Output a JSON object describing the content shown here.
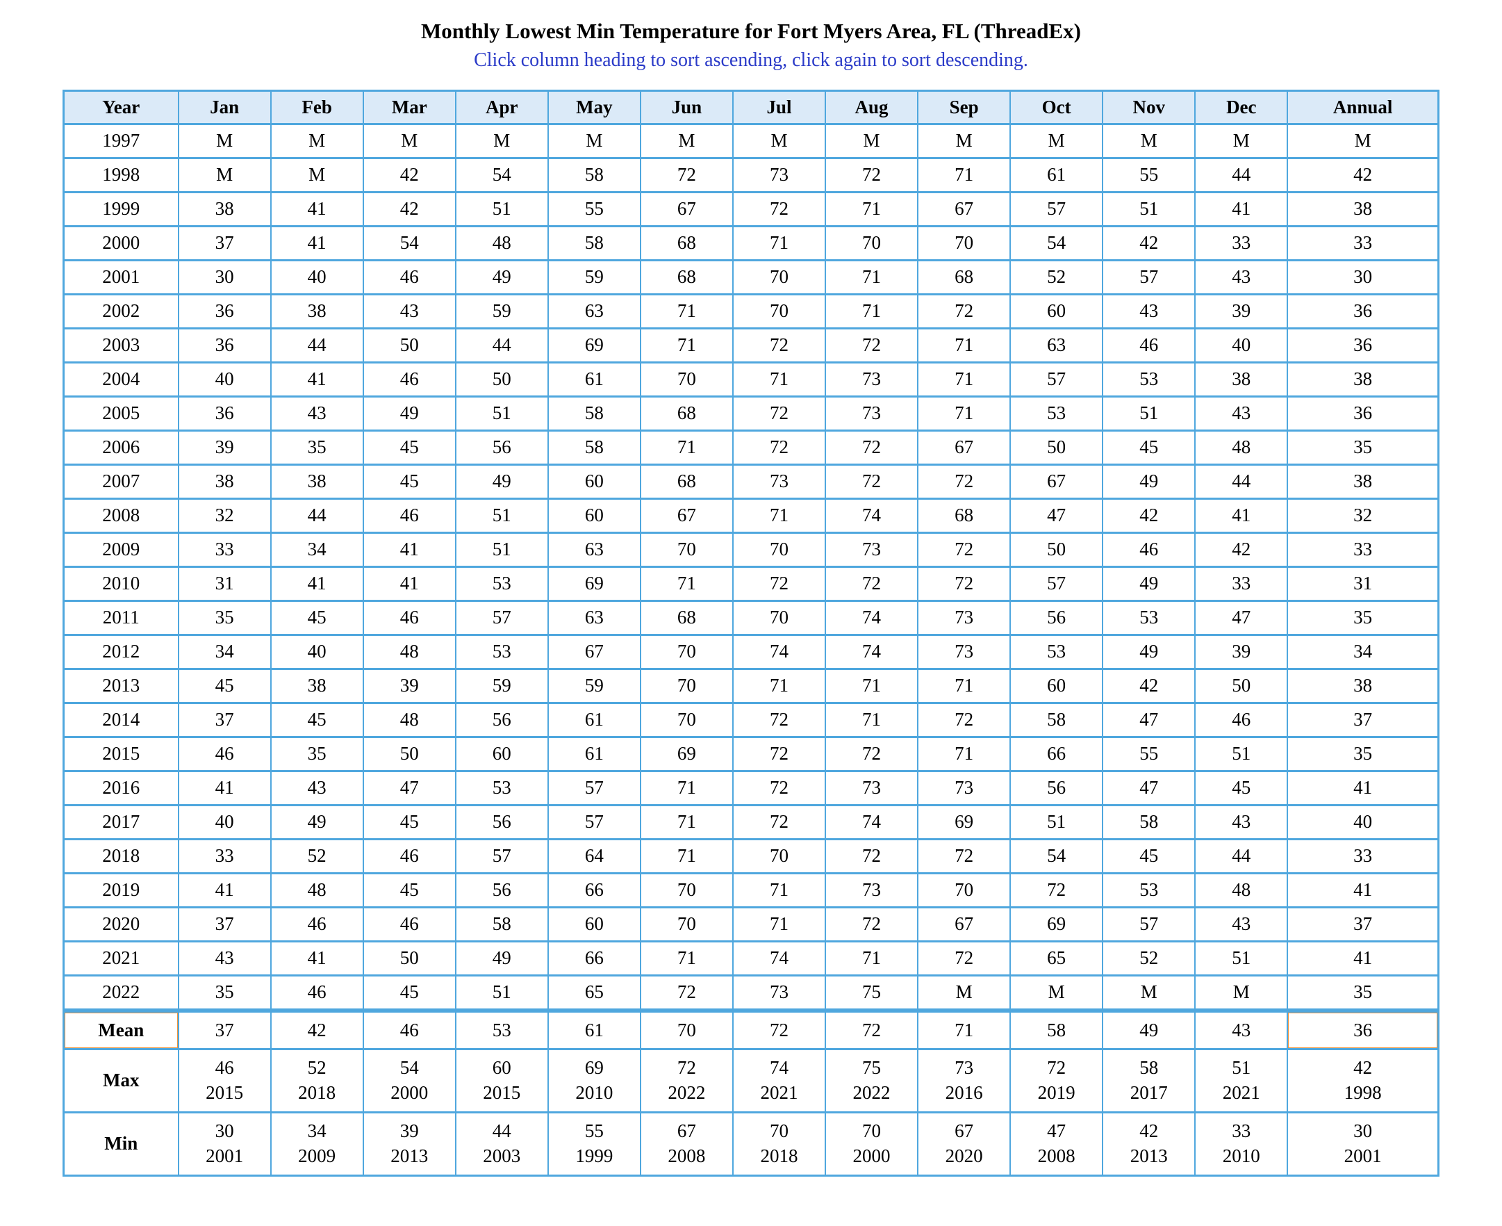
{
  "title": "Monthly Lowest Min Temperature for Fort Myers Area, FL (ThreadEx)",
  "subtitle": "Click column heading to sort ascending, click again to sort descending.",
  "colors": {
    "table_border": "#4FA7DE",
    "header_background": "#DBEAF8",
    "subtitle_blue": "#2B3BC8",
    "highlight_orange": "#F0943C"
  },
  "missing_marker": "M",
  "table": {
    "columns": [
      "Year",
      "Jan",
      "Feb",
      "Mar",
      "Apr",
      "May",
      "Jun",
      "Jul",
      "Aug",
      "Sep",
      "Oct",
      "Nov",
      "Dec",
      "Annual"
    ],
    "rows": [
      {
        "year": "1997",
        "values": [
          "M",
          "M",
          "M",
          "M",
          "M",
          "M",
          "M",
          "M",
          "M",
          "M",
          "M",
          "M"
        ],
        "annual": "M"
      },
      {
        "year": "1998",
        "values": [
          "M",
          "M",
          "42",
          "54",
          "58",
          "72",
          "73",
          "72",
          "71",
          "61",
          "55",
          "44"
        ],
        "annual": "42"
      },
      {
        "year": "1999",
        "values": [
          "38",
          "41",
          "42",
          "51",
          "55",
          "67",
          "72",
          "71",
          "67",
          "57",
          "51",
          "41"
        ],
        "annual": "38"
      },
      {
        "year": "2000",
        "values": [
          "37",
          "41",
          "54",
          "48",
          "58",
          "68",
          "71",
          "70",
          "70",
          "54",
          "42",
          "33"
        ],
        "annual": "33"
      },
      {
        "year": "2001",
        "values": [
          "30",
          "40",
          "46",
          "49",
          "59",
          "68",
          "70",
          "71",
          "68",
          "52",
          "57",
          "43"
        ],
        "annual": "30"
      },
      {
        "year": "2002",
        "values": [
          "36",
          "38",
          "43",
          "59",
          "63",
          "71",
          "70",
          "71",
          "72",
          "60",
          "43",
          "39"
        ],
        "annual": "36"
      },
      {
        "year": "2003",
        "values": [
          "36",
          "44",
          "50",
          "44",
          "69",
          "71",
          "72",
          "72",
          "71",
          "63",
          "46",
          "40"
        ],
        "annual": "36"
      },
      {
        "year": "2004",
        "values": [
          "40",
          "41",
          "46",
          "50",
          "61",
          "70",
          "71",
          "73",
          "71",
          "57",
          "53",
          "38"
        ],
        "annual": "38"
      },
      {
        "year": "2005",
        "values": [
          "36",
          "43",
          "49",
          "51",
          "58",
          "68",
          "72",
          "73",
          "71",
          "53",
          "51",
          "43"
        ],
        "annual": "36"
      },
      {
        "year": "2006",
        "values": [
          "39",
          "35",
          "45",
          "56",
          "58",
          "71",
          "72",
          "72",
          "67",
          "50",
          "45",
          "48"
        ],
        "annual": "35"
      },
      {
        "year": "2007",
        "values": [
          "38",
          "38",
          "45",
          "49",
          "60",
          "68",
          "73",
          "72",
          "72",
          "67",
          "49",
          "44"
        ],
        "annual": "38"
      },
      {
        "year": "2008",
        "values": [
          "32",
          "44",
          "46",
          "51",
          "60",
          "67",
          "71",
          "74",
          "68",
          "47",
          "42",
          "41"
        ],
        "annual": "32"
      },
      {
        "year": "2009",
        "values": [
          "33",
          "34",
          "41",
          "51",
          "63",
          "70",
          "70",
          "73",
          "72",
          "50",
          "46",
          "42"
        ],
        "annual": "33"
      },
      {
        "year": "2010",
        "values": [
          "31",
          "41",
          "41",
          "53",
          "69",
          "71",
          "72",
          "72",
          "72",
          "57",
          "49",
          "33"
        ],
        "annual": "31"
      },
      {
        "year": "2011",
        "values": [
          "35",
          "45",
          "46",
          "57",
          "63",
          "68",
          "70",
          "74",
          "73",
          "56",
          "53",
          "47"
        ],
        "annual": "35"
      },
      {
        "year": "2012",
        "values": [
          "34",
          "40",
          "48",
          "53",
          "67",
          "70",
          "74",
          "74",
          "73",
          "53",
          "49",
          "39"
        ],
        "annual": "34"
      },
      {
        "year": "2013",
        "values": [
          "45",
          "38",
          "39",
          "59",
          "59",
          "70",
          "71",
          "71",
          "71",
          "60",
          "42",
          "50"
        ],
        "annual": "38"
      },
      {
        "year": "2014",
        "values": [
          "37",
          "45",
          "48",
          "56",
          "61",
          "70",
          "72",
          "71",
          "72",
          "58",
          "47",
          "46"
        ],
        "annual": "37"
      },
      {
        "year": "2015",
        "values": [
          "46",
          "35",
          "50",
          "60",
          "61",
          "69",
          "72",
          "72",
          "71",
          "66",
          "55",
          "51"
        ],
        "annual": "35"
      },
      {
        "year": "2016",
        "values": [
          "41",
          "43",
          "47",
          "53",
          "57",
          "71",
          "72",
          "73",
          "73",
          "56",
          "47",
          "45"
        ],
        "annual": "41"
      },
      {
        "year": "2017",
        "values": [
          "40",
          "49",
          "45",
          "56",
          "57",
          "71",
          "72",
          "74",
          "69",
          "51",
          "58",
          "43"
        ],
        "annual": "40"
      },
      {
        "year": "2018",
        "values": [
          "33",
          "52",
          "46",
          "57",
          "64",
          "71",
          "70",
          "72",
          "72",
          "54",
          "45",
          "44"
        ],
        "annual": "33"
      },
      {
        "year": "2019",
        "values": [
          "41",
          "48",
          "45",
          "56",
          "66",
          "70",
          "71",
          "73",
          "70",
          "72",
          "53",
          "48"
        ],
        "annual": "41"
      },
      {
        "year": "2020",
        "values": [
          "37",
          "46",
          "46",
          "58",
          "60",
          "70",
          "71",
          "72",
          "67",
          "69",
          "57",
          "43"
        ],
        "annual": "37"
      },
      {
        "year": "2021",
        "values": [
          "43",
          "41",
          "50",
          "49",
          "66",
          "71",
          "74",
          "71",
          "72",
          "65",
          "52",
          "51"
        ],
        "annual": "41"
      },
      {
        "year": "2022",
        "values": [
          "35",
          "46",
          "45",
          "51",
          "65",
          "72",
          "73",
          "75",
          "M",
          "M",
          "M",
          "M"
        ],
        "annual": "35"
      }
    ],
    "mean": {
      "label": "Mean",
      "values": [
        "37",
        "42",
        "46",
        "53",
        "61",
        "70",
        "72",
        "72",
        "71",
        "58",
        "49",
        "43"
      ],
      "annual": "36",
      "highlighted": [
        "mean-label",
        "mean-annual"
      ]
    },
    "max": {
      "label": "Max",
      "cells": [
        {
          "value": "46",
          "year": "2015"
        },
        {
          "value": "52",
          "year": "2018"
        },
        {
          "value": "54",
          "year": "2000"
        },
        {
          "value": "60",
          "year": "2015"
        },
        {
          "value": "69",
          "year": "2010"
        },
        {
          "value": "72",
          "year": "2022"
        },
        {
          "value": "74",
          "year": "2021"
        },
        {
          "value": "75",
          "year": "2022"
        },
        {
          "value": "73",
          "year": "2016"
        },
        {
          "value": "72",
          "year": "2019"
        },
        {
          "value": "58",
          "year": "2017"
        },
        {
          "value": "51",
          "year": "2021"
        }
      ],
      "annual": {
        "value": "42",
        "year": "1998"
      }
    },
    "min": {
      "label": "Min",
      "cells": [
        {
          "value": "30",
          "year": "2001"
        },
        {
          "value": "34",
          "year": "2009"
        },
        {
          "value": "39",
          "year": "2013"
        },
        {
          "value": "44",
          "year": "2003"
        },
        {
          "value": "55",
          "year": "1999"
        },
        {
          "value": "67",
          "year": "2008"
        },
        {
          "value": "70",
          "year": "2018"
        },
        {
          "value": "70",
          "year": "2000"
        },
        {
          "value": "67",
          "year": "2020"
        },
        {
          "value": "47",
          "year": "2008"
        },
        {
          "value": "42",
          "year": "2013"
        },
        {
          "value": "33",
          "year": "2010"
        }
      ],
      "annual": {
        "value": "30",
        "year": "2001"
      }
    }
  }
}
